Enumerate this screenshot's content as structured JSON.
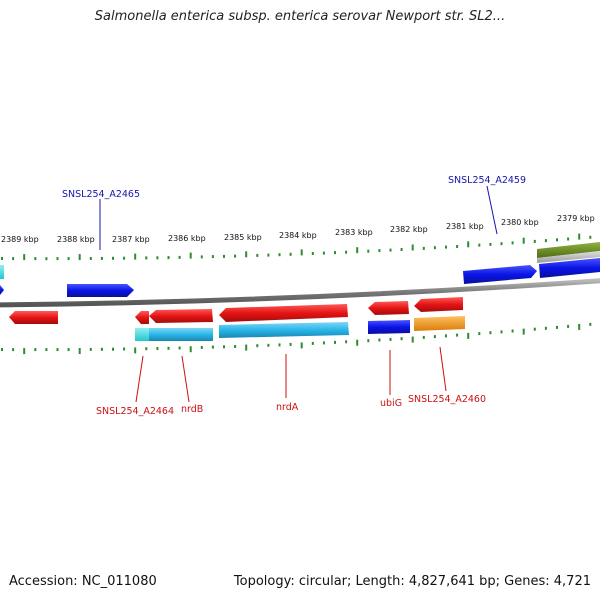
{
  "header": {
    "title": "Salmonella enterica subsp. enterica serovar Newport str. SL2..."
  },
  "footer": {
    "accession": "Accession: NC_011080",
    "summary": "Topology: circular; Length: 4,827,641 bp; Genes: 4,721"
  },
  "scale": {
    "ticks": [
      "2389 kbp",
      "2388 kbp",
      "2387 kbp",
      "2386 kbp",
      "2385 kbp",
      "2384 kbp",
      "2383 kbp",
      "2382 kbp",
      "2381 kbp",
      "2380 kbp",
      "2379 kbp"
    ],
    "tick_color": "#2e8b2e"
  },
  "colors": {
    "backbone": "#888888",
    "forward_gene": "#0a14e6",
    "reverse_gene": "#e61414",
    "cds_light_blue": "#29b6e8",
    "cyan": "#33dde0",
    "orange": "#f59a12",
    "olive": "#6b8e23",
    "grey_feature": "#b0b0b0",
    "forward_label": "#1515b0",
    "reverse_label": "#cc1111"
  },
  "labels": {
    "top": [
      {
        "name": "SNSL254_A2465",
        "strand": "forward"
      },
      {
        "name": "SNSL254_A2459",
        "strand": "forward"
      }
    ],
    "bottom": [
      {
        "name": "SNSL254_A2464",
        "strand": "reverse"
      },
      {
        "name": "nrdB",
        "strand": "reverse"
      },
      {
        "name": "nrdA",
        "strand": "reverse"
      },
      {
        "name": "ubiG",
        "strand": "reverse"
      },
      {
        "name": "SNSL254_A2460",
        "strand": "reverse"
      }
    ]
  }
}
